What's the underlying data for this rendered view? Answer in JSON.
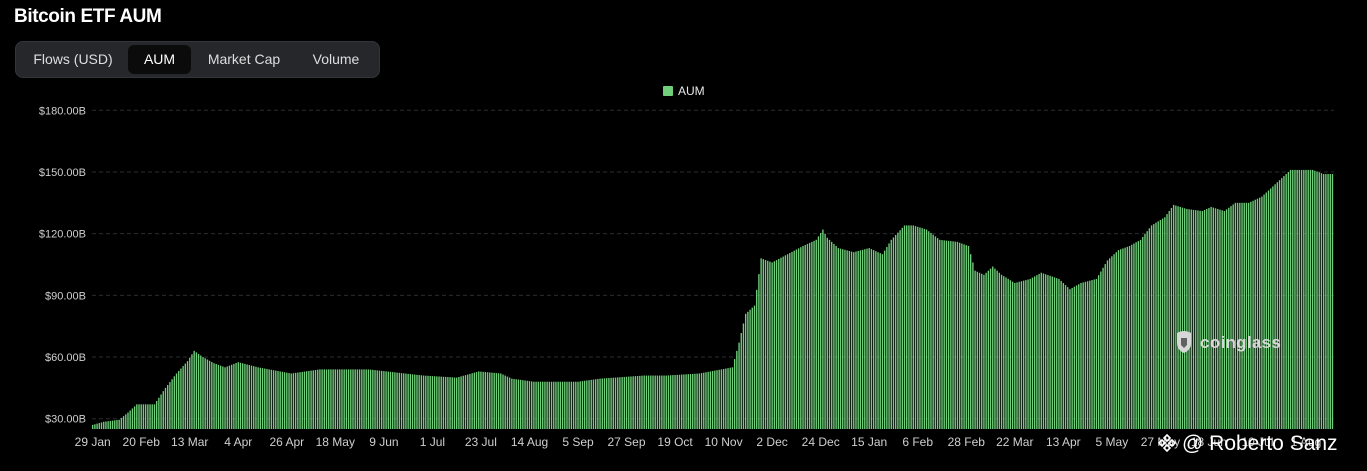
{
  "header": {
    "title": "Bitcoin ETF AUM",
    "tabs": [
      {
        "label": "Flows (USD)",
        "active": false
      },
      {
        "label": "AUM",
        "active": true
      },
      {
        "label": "Market Cap",
        "active": false
      },
      {
        "label": "Volume",
        "active": false
      }
    ]
  },
  "legend": {
    "label": "AUM",
    "color": "#6fcf7a"
  },
  "watermark": {
    "text": "coinglass",
    "icon": "coinglass-logo-icon"
  },
  "credit": {
    "text": "@ Roberto Sanz",
    "icon": "binance-diamond-icon"
  },
  "colors": {
    "background": "#000000",
    "bar": "#6fcf7a",
    "grid": "#2a2c31",
    "axis_text": "#cfcfcf"
  },
  "chart_data": {
    "type": "bar",
    "title": "Bitcoin ETF AUM",
    "xlabel": "",
    "ylabel": "",
    "ylim": [
      25,
      185
    ],
    "yticks": [
      "$30.00B",
      "$60.00B",
      "$90.00B",
      "$120.00B",
      "$150.00B",
      "$180.00B"
    ],
    "ytick_values": [
      30,
      60,
      90,
      120,
      150,
      180
    ],
    "xtick_labels": [
      "29 Jan",
      "20 Feb",
      "13 Mar",
      "4 Apr",
      "26 Apr",
      "18 May",
      "9 Jun",
      "1 Jul",
      "23 Jul",
      "14 Aug",
      "5 Sep",
      "27 Sep",
      "19 Oct",
      "10 Nov",
      "2 Dec",
      "24 Dec",
      "15 Jan",
      "6 Feb",
      "28 Feb",
      "22 Mar",
      "13 Apr",
      "5 May",
      "27 May",
      "18 Jun",
      "10 Jul",
      "1 Aug"
    ],
    "grid": true,
    "legend": "top-center",
    "series": [
      {
        "name": "AUM",
        "unit": "USD billions",
        "keypoints": [
          {
            "day": 0,
            "value": 27
          },
          {
            "day": 5,
            "value": 28.5
          },
          {
            "day": 12,
            "value": 29.5
          },
          {
            "day": 16,
            "value": 33
          },
          {
            "day": 20,
            "value": 37
          },
          {
            "day": 28,
            "value": 37
          },
          {
            "day": 33,
            "value": 45
          },
          {
            "day": 38,
            "value": 52
          },
          {
            "day": 43,
            "value": 58
          },
          {
            "day": 46,
            "value": 63
          },
          {
            "day": 50,
            "value": 60
          },
          {
            "day": 55,
            "value": 57
          },
          {
            "day": 60,
            "value": 55
          },
          {
            "day": 66,
            "value": 57.5
          },
          {
            "day": 75,
            "value": 55
          },
          {
            "day": 90,
            "value": 52
          },
          {
            "day": 103,
            "value": 54
          },
          {
            "day": 125,
            "value": 54
          },
          {
            "day": 150,
            "value": 51
          },
          {
            "day": 165,
            "value": 50
          },
          {
            "day": 175,
            "value": 53
          },
          {
            "day": 185,
            "value": 52
          },
          {
            "day": 190,
            "value": 49.5
          },
          {
            "day": 200,
            "value": 48
          },
          {
            "day": 220,
            "value": 48
          },
          {
            "day": 230,
            "value": 49.5
          },
          {
            "day": 250,
            "value": 51
          },
          {
            "day": 260,
            "value": 51
          },
          {
            "day": 275,
            "value": 52
          },
          {
            "day": 285,
            "value": 54
          },
          {
            "day": 290,
            "value": 55
          },
          {
            "day": 293,
            "value": 67
          },
          {
            "day": 296,
            "value": 81
          },
          {
            "day": 300,
            "value": 85
          },
          {
            "day": 303,
            "value": 108
          },
          {
            "day": 308,
            "value": 106
          },
          {
            "day": 315,
            "value": 110
          },
          {
            "day": 322,
            "value": 114
          },
          {
            "day": 328,
            "value": 117
          },
          {
            "day": 331,
            "value": 122
          },
          {
            "day": 333,
            "value": 118
          },
          {
            "day": 338,
            "value": 113
          },
          {
            "day": 345,
            "value": 111
          },
          {
            "day": 352,
            "value": 113
          },
          {
            "day": 358,
            "value": 110
          },
          {
            "day": 362,
            "value": 117
          },
          {
            "day": 368,
            "value": 124
          },
          {
            "day": 372,
            "value": 124
          },
          {
            "day": 378,
            "value": 122
          },
          {
            "day": 384,
            "value": 117
          },
          {
            "day": 392,
            "value": 116
          },
          {
            "day": 397,
            "value": 114
          },
          {
            "day": 400,
            "value": 102
          },
          {
            "day": 404,
            "value": 100
          },
          {
            "day": 408,
            "value": 104
          },
          {
            "day": 412,
            "value": 100
          },
          {
            "day": 418,
            "value": 96
          },
          {
            "day": 425,
            "value": 98
          },
          {
            "day": 430,
            "value": 101
          },
          {
            "day": 438,
            "value": 98
          },
          {
            "day": 443,
            "value": 93
          },
          {
            "day": 448,
            "value": 96
          },
          {
            "day": 455,
            "value": 98
          },
          {
            "day": 460,
            "value": 107
          },
          {
            "day": 465,
            "value": 112
          },
          {
            "day": 470,
            "value": 114
          },
          {
            "day": 475,
            "value": 117
          },
          {
            "day": 480,
            "value": 124
          },
          {
            "day": 486,
            "value": 128
          },
          {
            "day": 490,
            "value": 134
          },
          {
            "day": 496,
            "value": 132
          },
          {
            "day": 503,
            "value": 131
          },
          {
            "day": 507,
            "value": 133
          },
          {
            "day": 513,
            "value": 131
          },
          {
            "day": 518,
            "value": 135
          },
          {
            "day": 524,
            "value": 135
          },
          {
            "day": 530,
            "value": 138
          },
          {
            "day": 534,
            "value": 142
          },
          {
            "day": 538,
            "value": 146
          },
          {
            "day": 543,
            "value": 151
          },
          {
            "day": 553,
            "value": 151
          },
          {
            "day": 558,
            "value": 149
          },
          {
            "day": 562,
            "value": 149
          }
        ]
      }
    ]
  }
}
